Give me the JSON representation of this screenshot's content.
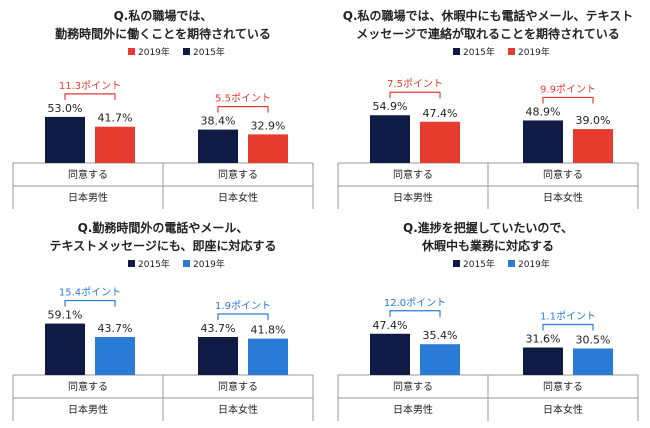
{
  "colors": {
    "navy": "#0f1a45",
    "red": "#e63c2f",
    "blue": "#2a7bd6",
    "grid": "#9a9a9a",
    "text": "#222222"
  },
  "chart_data": [
    {
      "type": "bar",
      "title_lines": [
        "Q.私の職場では、",
        "勤務時間外に働くことを期待されている"
      ],
      "legend": [
        {
          "name": "2019年",
          "color": "#e63c2f"
        },
        {
          "name": "2015年",
          "color": "#0f1a45"
        }
      ],
      "groups": [
        {
          "category": "日本男性",
          "sub": "同意する",
          "diff_label": "11.3ポイント",
          "diff_color": "#e63c2f",
          "bars": [
            {
              "series": "2015年",
              "value": 53.0,
              "label": "53.0%"
            },
            {
              "series": "2019年",
              "value": 41.7,
              "label": "41.7%"
            }
          ]
        },
        {
          "category": "日本女性",
          "sub": "同意する",
          "diff_label": "5.5ポイント",
          "diff_color": "#e63c2f",
          "bars": [
            {
              "series": "2015年",
              "value": 38.4,
              "label": "38.4%"
            },
            {
              "series": "2019年",
              "value": 32.9,
              "label": "32.9%"
            }
          ]
        }
      ],
      "series_colors": {
        "2015年": "#0f1a45",
        "2019年": "#e63c2f"
      }
    },
    {
      "type": "bar",
      "title_lines": [
        "Q.私の職場では、休暇中にも電話やメール、テキスト",
        "メッセージで連絡が取れることを期待されている"
      ],
      "legend": [
        {
          "name": "2015年",
          "color": "#0f1a45"
        },
        {
          "name": "2019年",
          "color": "#e63c2f"
        }
      ],
      "groups": [
        {
          "category": "日本男性",
          "sub": "同意する",
          "diff_label": "7.5ポイント",
          "diff_color": "#e63c2f",
          "bars": [
            {
              "series": "2015年",
              "value": 54.9,
              "label": "54.9%"
            },
            {
              "series": "2019年",
              "value": 47.4,
              "label": "47.4%"
            }
          ]
        },
        {
          "category": "日本女性",
          "sub": "同意する",
          "diff_label": "9.9ポイント",
          "diff_color": "#e63c2f",
          "bars": [
            {
              "series": "2015年",
              "value": 48.9,
              "label": "48.9%"
            },
            {
              "series": "2019年",
              "value": 39.0,
              "label": "39.0%"
            }
          ]
        }
      ],
      "series_colors": {
        "2015年": "#0f1a45",
        "2019年": "#e63c2f"
      }
    },
    {
      "type": "bar",
      "title_lines": [
        "Q.勤務時間外の電話やメール、",
        "テキストメッセージにも、即座に対応する"
      ],
      "legend": [
        {
          "name": "2015年",
          "color": "#0f1a45"
        },
        {
          "name": "2019年",
          "color": "#2a7bd6"
        }
      ],
      "groups": [
        {
          "category": "日本男性",
          "sub": "同意する",
          "diff_label": "15.4ポイント",
          "diff_color": "#2a7bd6",
          "bars": [
            {
              "series": "2015年",
              "value": 59.1,
              "label": "59.1%"
            },
            {
              "series": "2019年",
              "value": 43.7,
              "label": "43.7%"
            }
          ]
        },
        {
          "category": "日本女性",
          "sub": "同意する",
          "diff_label": "1.9ポイント",
          "diff_color": "#2a7bd6",
          "bars": [
            {
              "series": "2015年",
              "value": 43.7,
              "label": "43.7%"
            },
            {
              "series": "2019年",
              "value": 41.8,
              "label": "41.8%"
            }
          ]
        }
      ],
      "series_colors": {
        "2015年": "#0f1a45",
        "2019年": "#2a7bd6"
      }
    },
    {
      "type": "bar",
      "title_lines": [
        "Q.進捗を把握していたいので、",
        "休暇中も業務に対応する"
      ],
      "legend": [
        {
          "name": "2015年",
          "color": "#0f1a45"
        },
        {
          "name": "2019年",
          "color": "#2a7bd6"
        }
      ],
      "groups": [
        {
          "category": "日本男性",
          "sub": "同意する",
          "diff_label": "12.0ポイント",
          "diff_color": "#2a7bd6",
          "bars": [
            {
              "series": "2015年",
              "value": 47.4,
              "label": "47.4%"
            },
            {
              "series": "2019年",
              "value": 35.4,
              "label": "35.4%"
            }
          ]
        },
        {
          "category": "日本女性",
          "sub": "同意する",
          "diff_label": "1.1ポイント",
          "diff_color": "#2a7bd6",
          "bars": [
            {
              "series": "2015年",
              "value": 31.6,
              "label": "31.6%"
            },
            {
              "series": "2019年",
              "value": 30.5,
              "label": "30.5%"
            }
          ]
        }
      ],
      "series_colors": {
        "2015年": "#0f1a45",
        "2019年": "#2a7bd6"
      }
    }
  ]
}
